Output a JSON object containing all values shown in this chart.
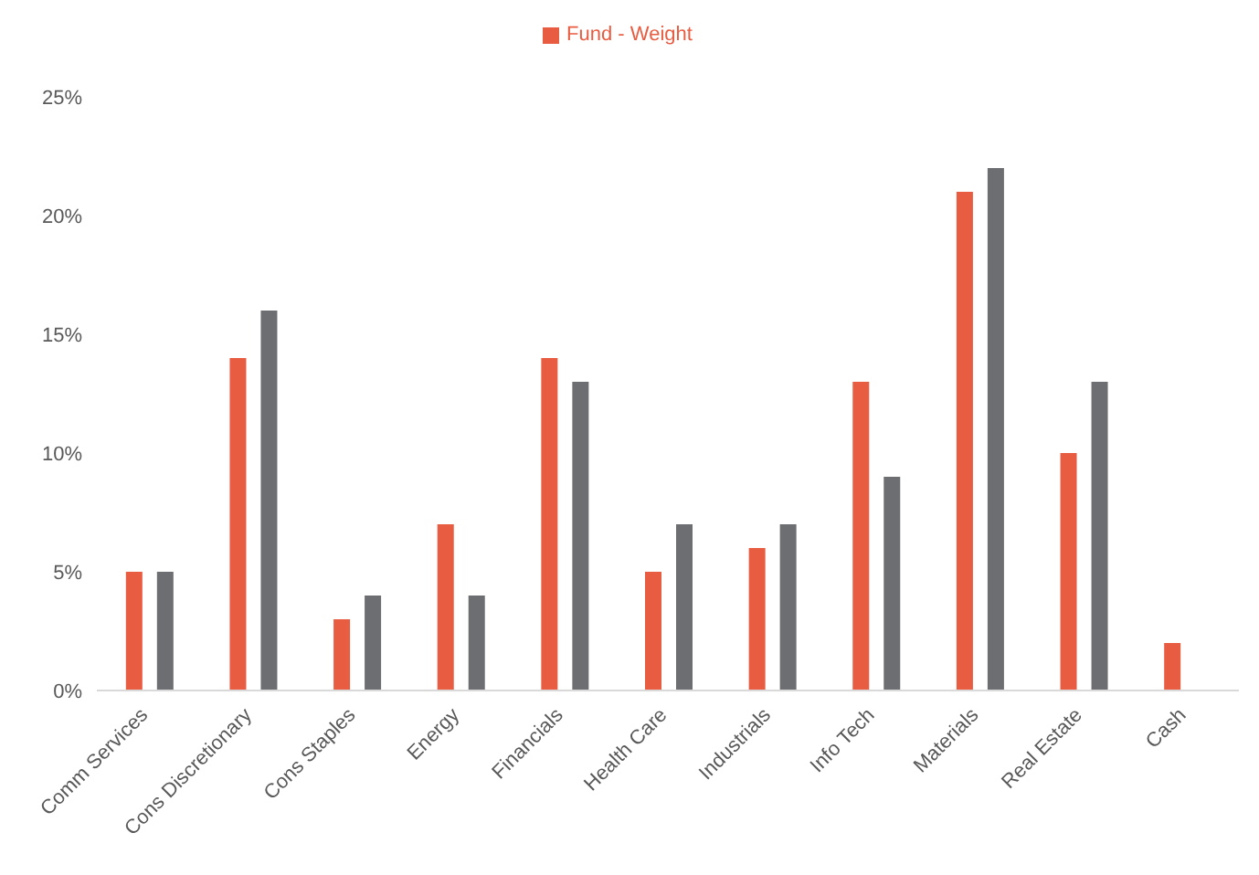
{
  "chart_data": {
    "type": "bar",
    "categories": [
      "Comm Services",
      "Cons Discretionary",
      "Cons Staples",
      "Energy",
      "Financials",
      "Health Care",
      "Industrials",
      "Info Tech",
      "Materials",
      "Real Estate",
      "Cash"
    ],
    "series": [
      {
        "name": "Fund - Weight",
        "color": "#e85c41",
        "values": [
          5,
          14,
          3,
          7,
          14,
          5,
          6,
          13,
          21,
          10,
          2
        ]
      },
      {
        "color": "#6d6e71",
        "values": [
          5,
          16,
          4,
          4,
          13,
          7,
          7,
          9,
          22,
          13,
          null
        ]
      }
    ],
    "ylim": [
      0,
      25
    ],
    "yticks": [
      {
        "value": 0,
        "label": "0%"
      },
      {
        "value": 5,
        "label": "5%"
      },
      {
        "value": 10,
        "label": "10%"
      },
      {
        "value": 15,
        "label": "15%"
      },
      {
        "value": 20,
        "label": "20%"
      },
      {
        "value": 25,
        "label": "25%"
      }
    ],
    "grid": false,
    "legend": "top"
  }
}
